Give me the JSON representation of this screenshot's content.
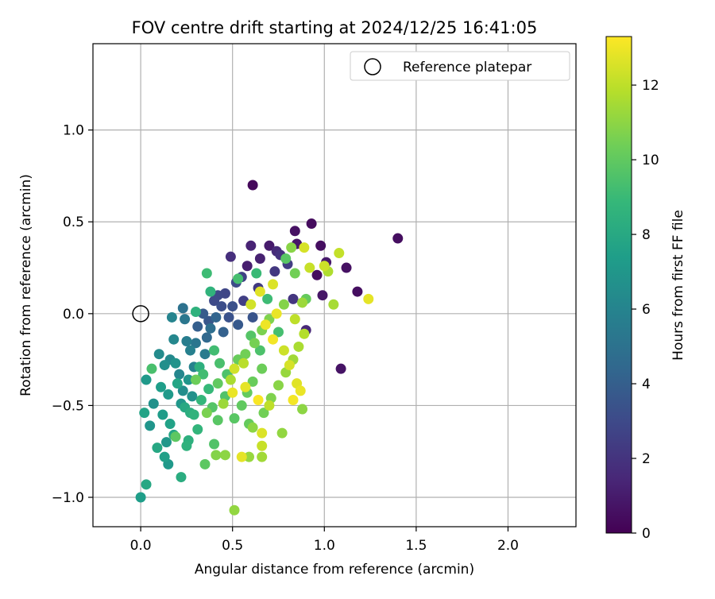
{
  "chart_data": {
    "type": "scatter",
    "title": "FOV centre drift starting at 2024/12/25 16:41:05",
    "xlabel": "Angular distance from reference (arcmin)",
    "ylabel": "Rotation from reference (arcmin)",
    "xlim": [
      -0.26,
      2.37
    ],
    "ylim": [
      -1.16,
      1.47
    ],
    "xticks": [
      0.0,
      0.5,
      1.0,
      1.5,
      2.0
    ],
    "xtick_labels": [
      "0.0",
      "0.5",
      "1.0",
      "1.5",
      "2.0"
    ],
    "yticks": [
      -1.0,
      -0.5,
      0.0,
      0.5,
      1.0
    ],
    "ytick_labels": [
      "−1.0",
      "−0.5",
      "0.0",
      "0.5",
      "1.0"
    ],
    "grid": true,
    "legend": {
      "placement": "top-right",
      "entries": [
        "Reference platepar"
      ]
    },
    "reference_point": {
      "x": 0.0,
      "y": 0.0
    },
    "colorbar": {
      "label": "Hours from first FF file",
      "range": [
        0,
        13.3
      ],
      "ticks": [
        0,
        2,
        4,
        6,
        8,
        10,
        12
      ],
      "tick_labels": [
        "0",
        "2",
        "4",
        "6",
        "8",
        "10",
        "12"
      ],
      "colormap": [
        "#440154",
        "#482878",
        "#3e4989",
        "#31688e",
        "#26828e",
        "#1f9e89",
        "#35b779",
        "#6ece58",
        "#b5de2b",
        "#fde725"
      ]
    },
    "series": [
      {
        "points": [
          {
            "x": 0.61,
            "y": 0.7,
            "h": 0.3
          },
          {
            "x": 0.93,
            "y": 0.49,
            "h": 0.4
          },
          {
            "x": 0.84,
            "y": 0.45,
            "h": 0.6
          },
          {
            "x": 1.4,
            "y": 0.41,
            "h": 0.5
          },
          {
            "x": 1.09,
            "y": -0.3,
            "h": 0.7
          },
          {
            "x": 0.85,
            "y": 0.38,
            "h": 0.8
          },
          {
            "x": 0.98,
            "y": 0.37,
            "h": 0.5
          },
          {
            "x": 0.6,
            "y": 0.37,
            "h": 1.3
          },
          {
            "x": 0.7,
            "y": 0.37,
            "h": 1.0
          },
          {
            "x": 0.74,
            "y": 0.34,
            "h": 1.6
          },
          {
            "x": 0.49,
            "y": 0.31,
            "h": 1.8
          },
          {
            "x": 0.65,
            "y": 0.3,
            "h": 1.2
          },
          {
            "x": 0.76,
            "y": 0.32,
            "h": 1.9
          },
          {
            "x": 1.01,
            "y": 0.28,
            "h": 0.9
          },
          {
            "x": 1.12,
            "y": 0.25,
            "h": 0.6
          },
          {
            "x": 0.58,
            "y": 0.26,
            "h": 1.1
          },
          {
            "x": 0.96,
            "y": 0.21,
            "h": 0.4
          },
          {
            "x": 1.18,
            "y": 0.12,
            "h": 0.5
          },
          {
            "x": 0.99,
            "y": 0.1,
            "h": 0.8
          },
          {
            "x": 0.73,
            "y": 0.23,
            "h": 2.2
          },
          {
            "x": 0.8,
            "y": 0.27,
            "h": 2.4
          },
          {
            "x": 0.55,
            "y": 0.2,
            "h": 2.6
          },
          {
            "x": 0.46,
            "y": 0.11,
            "h": 2.8
          },
          {
            "x": 0.4,
            "y": 0.07,
            "h": 3.0
          },
          {
            "x": 0.44,
            "y": 0.04,
            "h": 3.2
          },
          {
            "x": 0.48,
            "y": -0.02,
            "h": 3.4
          },
          {
            "x": 0.37,
            "y": -0.04,
            "h": 3.6
          },
          {
            "x": 0.34,
            "y": 0.0,
            "h": 3.8
          },
          {
            "x": 0.31,
            "y": -0.07,
            "h": 4.0
          },
          {
            "x": 0.42,
            "y": 0.1,
            "h": 2.9
          },
          {
            "x": 0.52,
            "y": 0.17,
            "h": 3.1
          },
          {
            "x": 0.5,
            "y": 0.04,
            "h": 3.3
          },
          {
            "x": 0.56,
            "y": 0.07,
            "h": 2.5
          },
          {
            "x": 0.64,
            "y": 0.14,
            "h": 2.3
          },
          {
            "x": 0.83,
            "y": 0.08,
            "h": 2.1
          },
          {
            "x": 0.9,
            "y": -0.09,
            "h": 1.5
          },
          {
            "x": 0.61,
            "y": -0.02,
            "h": 3.5
          },
          {
            "x": 0.53,
            "y": -0.06,
            "h": 3.7
          },
          {
            "x": 0.45,
            "y": -0.1,
            "h": 4.1
          },
          {
            "x": 0.41,
            "y": -0.02,
            "h": 4.3
          },
          {
            "x": 0.36,
            "y": -0.13,
            "h": 4.5
          },
          {
            "x": 0.23,
            "y": 0.03,
            "h": 5.0
          },
          {
            "x": 0.24,
            "y": -0.03,
            "h": 5.3
          },
          {
            "x": 0.25,
            "y": -0.15,
            "h": 5.6
          },
          {
            "x": 0.27,
            "y": -0.2,
            "h": 5.8
          },
          {
            "x": 0.3,
            "y": -0.16,
            "h": 5.2
          },
          {
            "x": 0.38,
            "y": -0.08,
            "h": 4.8
          },
          {
            "x": 0.35,
            "y": -0.22,
            "h": 5.5
          },
          {
            "x": 0.29,
            "y": -0.29,
            "h": 5.9
          },
          {
            "x": 0.17,
            "y": -0.02,
            "h": 6.0
          },
          {
            "x": 0.18,
            "y": -0.14,
            "h": 6.2
          },
          {
            "x": 0.1,
            "y": -0.22,
            "h": 6.4
          },
          {
            "x": 0.13,
            "y": -0.28,
            "h": 6.6
          },
          {
            "x": 0.16,
            "y": -0.25,
            "h": 6.3
          },
          {
            "x": 0.19,
            "y": -0.27,
            "h": 6.8
          },
          {
            "x": 0.21,
            "y": -0.33,
            "h": 6.1
          },
          {
            "x": 0.23,
            "y": -0.42,
            "h": 6.5
          },
          {
            "x": 0.26,
            "y": -0.36,
            "h": 6.9
          },
          {
            "x": 0.28,
            "y": -0.45,
            "h": 6.7
          },
          {
            "x": 0.22,
            "y": -0.49,
            "h": 7.0
          },
          {
            "x": 0.15,
            "y": -0.44,
            "h": 7.2
          },
          {
            "x": 0.11,
            "y": -0.4,
            "h": 7.4
          },
          {
            "x": 0.07,
            "y": -0.49,
            "h": 6.7
          },
          {
            "x": 0.05,
            "y": -0.61,
            "h": 6.9
          },
          {
            "x": 0.03,
            "y": -0.36,
            "h": 7.1
          },
          {
            "x": 0.12,
            "y": -0.55,
            "h": 7.3
          },
          {
            "x": 0.16,
            "y": -0.6,
            "h": 7.6
          },
          {
            "x": 0.18,
            "y": -0.66,
            "h": 7.8
          },
          {
            "x": 0.14,
            "y": -0.7,
            "h": 7.0
          },
          {
            "x": 0.09,
            "y": -0.73,
            "h": 7.9
          },
          {
            "x": 0.13,
            "y": -0.78,
            "h": 7.5
          },
          {
            "x": 0.15,
            "y": -0.82,
            "h": 7.1
          },
          {
            "x": 0.02,
            "y": -0.54,
            "h": 7.7
          },
          {
            "x": 0.2,
            "y": -0.38,
            "h": 7.8
          },
          {
            "x": 0.24,
            "y": -0.51,
            "h": 8.0
          },
          {
            "x": 0.27,
            "y": -0.54,
            "h": 8.3
          },
          {
            "x": 0.03,
            "y": -0.93,
            "h": 7.9
          },
          {
            "x": 0.0,
            "y": -1.0,
            "h": 7.4
          },
          {
            "x": 0.22,
            "y": -0.89,
            "h": 8.2
          },
          {
            "x": 0.26,
            "y": -0.69,
            "h": 8.4
          },
          {
            "x": 0.25,
            "y": -0.72,
            "h": 8.5
          },
          {
            "x": 0.31,
            "y": -0.63,
            "h": 8.7
          },
          {
            "x": 0.29,
            "y": -0.55,
            "h": 8.6
          },
          {
            "x": 0.33,
            "y": -0.47,
            "h": 8.8
          },
          {
            "x": 0.37,
            "y": -0.41,
            "h": 8.9
          },
          {
            "x": 0.32,
            "y": -0.29,
            "h": 8.4
          },
          {
            "x": 0.3,
            "y": 0.01,
            "h": 8.5
          },
          {
            "x": 0.38,
            "y": 0.12,
            "h": 8.6
          },
          {
            "x": 0.36,
            "y": 0.22,
            "h": 9.1
          },
          {
            "x": 0.63,
            "y": 0.22,
            "h": 9.0
          },
          {
            "x": 0.53,
            "y": 0.19,
            "h": 9.3
          },
          {
            "x": 0.4,
            "y": -0.2,
            "h": 9.2
          },
          {
            "x": 0.43,
            "y": -0.27,
            "h": 9.4
          },
          {
            "x": 0.47,
            "y": -0.33,
            "h": 9.5
          },
          {
            "x": 0.46,
            "y": -0.45,
            "h": 9.6
          },
          {
            "x": 0.39,
            "y": -0.51,
            "h": 9.7
          },
          {
            "x": 0.42,
            "y": -0.58,
            "h": 9.8
          },
          {
            "x": 0.35,
            "y": -0.82,
            "h": 9.9
          },
          {
            "x": 0.4,
            "y": -0.71,
            "h": 9.6
          },
          {
            "x": 0.51,
            "y": -0.57,
            "h": 9.8
          },
          {
            "x": 0.55,
            "y": -0.5,
            "h": 10.0
          },
          {
            "x": 0.58,
            "y": -0.43,
            "h": 10.1
          },
          {
            "x": 0.61,
            "y": -0.37,
            "h": 10.2
          },
          {
            "x": 0.66,
            "y": -0.3,
            "h": 10.3
          },
          {
            "x": 0.57,
            "y": -0.22,
            "h": 10.4
          },
          {
            "x": 0.62,
            "y": -0.16,
            "h": 10.5
          },
          {
            "x": 0.66,
            "y": -0.09,
            "h": 10.6
          },
          {
            "x": 0.7,
            "y": -0.03,
            "h": 10.7
          },
          {
            "x": 0.78,
            "y": 0.05,
            "h": 10.8
          },
          {
            "x": 0.82,
            "y": 0.36,
            "h": 10.9
          },
          {
            "x": 0.88,
            "y": -0.52,
            "h": 11.0
          },
          {
            "x": 0.77,
            "y": -0.65,
            "h": 11.1
          },
          {
            "x": 0.59,
            "y": -0.6,
            "h": 10.1
          },
          {
            "x": 0.67,
            "y": -0.54,
            "h": 10.4
          },
          {
            "x": 0.71,
            "y": -0.46,
            "h": 10.7
          },
          {
            "x": 0.75,
            "y": -0.39,
            "h": 10.9
          },
          {
            "x": 0.79,
            "y": -0.32,
            "h": 11.2
          },
          {
            "x": 0.83,
            "y": -0.25,
            "h": 11.4
          },
          {
            "x": 0.86,
            "y": -0.18,
            "h": 11.6
          },
          {
            "x": 0.89,
            "y": -0.11,
            "h": 11.8
          },
          {
            "x": 0.84,
            "y": -0.03,
            "h": 12.0
          },
          {
            "x": 0.88,
            "y": 0.06,
            "h": 11.3
          },
          {
            "x": 1.05,
            "y": 0.05,
            "h": 11.5
          },
          {
            "x": 1.02,
            "y": 0.23,
            "h": 11.7
          },
          {
            "x": 1.08,
            "y": 0.33,
            "h": 12.1
          },
          {
            "x": 1.0,
            "y": 0.26,
            "h": 12.3
          },
          {
            "x": 0.89,
            "y": 0.36,
            "h": 12.5
          },
          {
            "x": 0.92,
            "y": 0.25,
            "h": 12.2
          },
          {
            "x": 1.24,
            "y": 0.08,
            "h": 12.8
          },
          {
            "x": 0.72,
            "y": 0.16,
            "h": 12.6
          },
          {
            "x": 0.65,
            "y": 0.12,
            "h": 12.7
          },
          {
            "x": 0.6,
            "y": 0.05,
            "h": 12.4
          },
          {
            "x": 0.74,
            "y": 0.0,
            "h": 12.9
          },
          {
            "x": 0.68,
            "y": -0.06,
            "h": 13.0
          },
          {
            "x": 0.72,
            "y": -0.14,
            "h": 13.1
          },
          {
            "x": 0.78,
            "y": -0.2,
            "h": 12.3
          },
          {
            "x": 0.81,
            "y": -0.28,
            "h": 12.5
          },
          {
            "x": 0.85,
            "y": -0.38,
            "h": 12.7
          },
          {
            "x": 0.87,
            "y": -0.42,
            "h": 12.9
          },
          {
            "x": 0.83,
            "y": -0.47,
            "h": 13.1
          },
          {
            "x": 0.7,
            "y": -0.5,
            "h": 12.0
          },
          {
            "x": 0.64,
            "y": -0.47,
            "h": 13.2
          },
          {
            "x": 0.57,
            "y": -0.4,
            "h": 12.8
          },
          {
            "x": 0.51,
            "y": -0.3,
            "h": 12.4
          },
          {
            "x": 0.56,
            "y": -0.27,
            "h": 11.9
          },
          {
            "x": 0.49,
            "y": -0.36,
            "h": 11.6
          },
          {
            "x": 0.45,
            "y": -0.49,
            "h": 11.3
          },
          {
            "x": 0.5,
            "y": -0.43,
            "h": 12.9
          },
          {
            "x": 0.61,
            "y": -0.62,
            "h": 11.0
          },
          {
            "x": 0.66,
            "y": -0.65,
            "h": 12.6
          },
          {
            "x": 0.66,
            "y": -0.72,
            "h": 12.2
          },
          {
            "x": 0.66,
            "y": -0.78,
            "h": 11.4
          },
          {
            "x": 0.55,
            "y": -0.78,
            "h": 12.8
          },
          {
            "x": 0.59,
            "y": -0.78,
            "h": 11.2
          },
          {
            "x": 0.46,
            "y": -0.77,
            "h": 11.0
          },
          {
            "x": 0.51,
            "y": -1.07,
            "h": 11.1
          },
          {
            "x": 0.41,
            "y": -0.77,
            "h": 10.8
          },
          {
            "x": 0.36,
            "y": -0.54,
            "h": 10.6
          },
          {
            "x": 0.3,
            "y": -0.36,
            "h": 10.3
          },
          {
            "x": 0.19,
            "y": -0.67,
            "h": 9.9
          },
          {
            "x": 0.06,
            "y": -0.3,
            "h": 9.4
          },
          {
            "x": 0.34,
            "y": -0.33,
            "h": 9.2
          },
          {
            "x": 0.42,
            "y": -0.38,
            "h": 10.0
          },
          {
            "x": 0.53,
            "y": -0.25,
            "h": 10.2
          },
          {
            "x": 0.6,
            "y": -0.12,
            "h": 9.7
          },
          {
            "x": 0.65,
            "y": -0.2,
            "h": 9.5
          },
          {
            "x": 0.75,
            "y": -0.1,
            "h": 9.3
          },
          {
            "x": 0.69,
            "y": 0.08,
            "h": 9.1
          },
          {
            "x": 0.79,
            "y": 0.3,
            "h": 9.8
          },
          {
            "x": 0.84,
            "y": 0.22,
            "h": 10.4
          },
          {
            "x": 0.9,
            "y": 0.08,
            "h": 10.1
          }
        ]
      }
    ]
  }
}
